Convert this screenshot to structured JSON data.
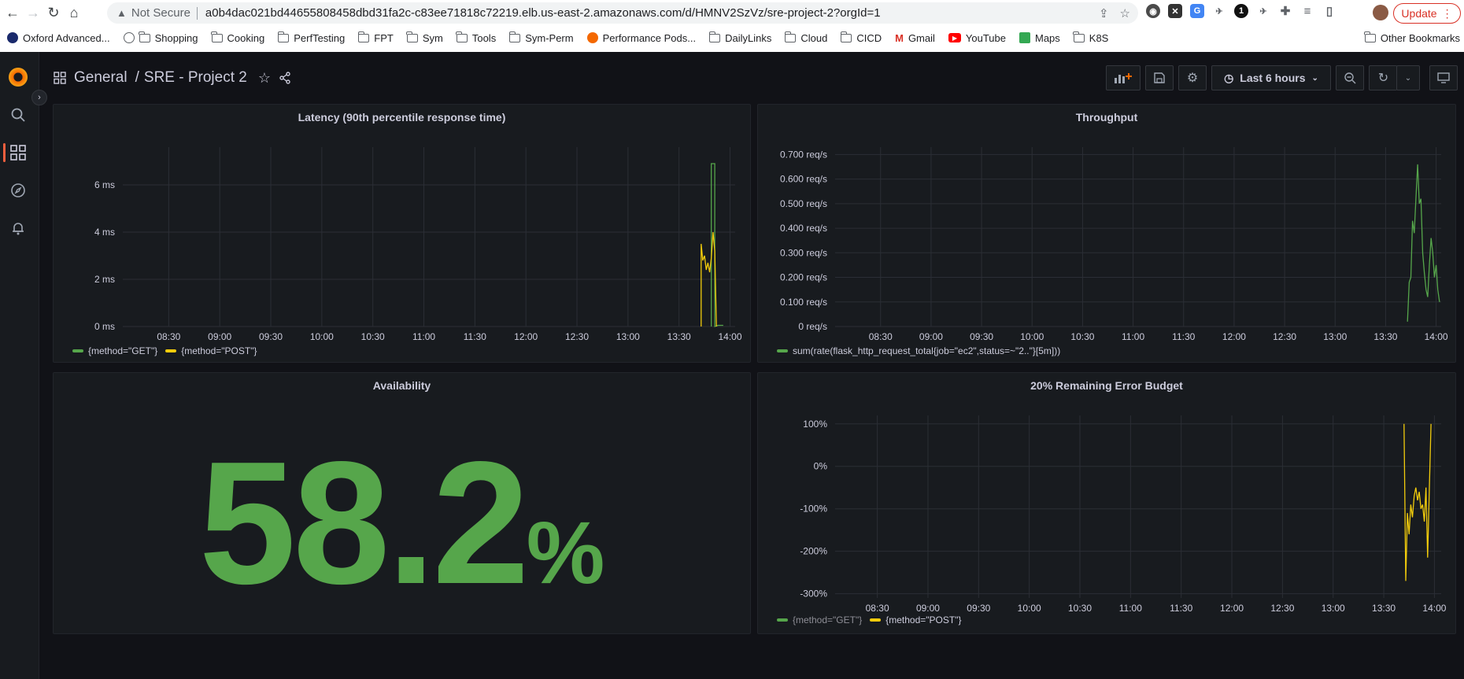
{
  "browser": {
    "security_label": "Not Secure",
    "url": "a0b4dac021bd44655808458dbd31fa2c-c83ee71818c72219.elb.us-east-2.amazonaws.com/d/HMNV2SzVz/sre-project-2?orgId=1",
    "update_label": "Update",
    "bookmarks": [
      "Oxford Advanced...",
      "Shopping",
      "Cooking",
      "PerfTesting",
      "FPT",
      "Sym",
      "Tools",
      "Sym-Perm",
      "Performance Pods...",
      "DailyLinks",
      "Cloud",
      "CICD",
      "Gmail",
      "YouTube",
      "Maps",
      "K8S"
    ],
    "other_bookmarks": "Other Bookmarks"
  },
  "dashboard": {
    "folder": "General",
    "separator": "/",
    "title": "SRE - Project 2",
    "time_range": "Last 6 hours"
  },
  "colors": {
    "green": "#56a64b",
    "yellow": "#f2cc0c",
    "grid": "#2b2e35"
  },
  "panels": {
    "latency": {
      "title": "Latency (90th percentile response time)",
      "legend": [
        "{method=\"GET\"}",
        "{method=\"POST\"}"
      ]
    },
    "throughput": {
      "title": "Throughput",
      "legend": [
        "sum(rate(flask_http_request_total{job=\"ec2\",status=~\"2..\"}[5m]))"
      ]
    },
    "availability": {
      "title": "Availability",
      "value": "58.2",
      "unit": "%"
    },
    "error_budget": {
      "title": "20% Remaining Error Budget",
      "legend": [
        "{method=\"GET\"}",
        "{method=\"POST\"}"
      ]
    }
  },
  "chart_data": [
    {
      "type": "line",
      "title": "Latency (90th percentile response time)",
      "x_ticks": [
        "08:30",
        "09:00",
        "09:30",
        "10:00",
        "10:30",
        "11:00",
        "11:30",
        "12:00",
        "12:30",
        "13:00",
        "13:30",
        "14:00"
      ],
      "y_ticks": [
        "0 ms",
        "2 ms",
        "4 ms",
        "6 ms"
      ],
      "ylim": [
        0,
        7.6
      ],
      "xlim": [
        "08:03",
        "14:03"
      ],
      "series": [
        {
          "name": "{method=\"GET\"}",
          "x": [
            "13:49",
            "13:49",
            "13:51",
            "13:51",
            "13:53",
            "13:56"
          ],
          "y": [
            0,
            6.9,
            6.9,
            0,
            0.05,
            0.05
          ]
        },
        {
          "name": "{method=\"POST\"}",
          "x": [
            "13:43",
            "13:43",
            "13:44",
            "13:45",
            "13:46",
            "13:47",
            "13:48",
            "13:49",
            "13:50",
            "13:51",
            "13:52"
          ],
          "y": [
            0,
            3.5,
            2.8,
            3.0,
            2.4,
            2.7,
            2.3,
            2.9,
            4.0,
            3.2,
            0
          ]
        }
      ]
    },
    {
      "type": "line",
      "title": "Throughput",
      "x_ticks": [
        "08:30",
        "09:00",
        "09:30",
        "10:00",
        "10:30",
        "11:00",
        "11:30",
        "12:00",
        "12:30",
        "13:00",
        "13:30",
        "14:00"
      ],
      "y_ticks": [
        "0 req/s",
        "0.100 req/s",
        "0.200 req/s",
        "0.300 req/s",
        "0.400 req/s",
        "0.500 req/s",
        "0.600 req/s",
        "0.700 req/s"
      ],
      "ylim": [
        0,
        0.73
      ],
      "xlim": [
        "08:03",
        "14:03"
      ],
      "series": [
        {
          "name": "sum(rate(flask_http_request_total{job=\"ec2\",status=~\"2..\"}[5m]))",
          "x": [
            "13:43",
            "13:44",
            "13:45",
            "13:46",
            "13:47",
            "13:48",
            "13:49",
            "13:50",
            "13:51",
            "13:52",
            "13:53",
            "13:54",
            "13:55",
            "13:56",
            "13:57",
            "13:58",
            "13:59",
            "14:00",
            "14:01",
            "14:02"
          ],
          "y": [
            0.02,
            0.18,
            0.2,
            0.43,
            0.38,
            0.52,
            0.66,
            0.5,
            0.52,
            0.3,
            0.22,
            0.15,
            0.12,
            0.25,
            0.36,
            0.3,
            0.2,
            0.25,
            0.15,
            0.1
          ]
        }
      ]
    },
    {
      "type": "line",
      "title": "20% Remaining Error Budget",
      "x_ticks": [
        "08:30",
        "09:00",
        "09:30",
        "10:00",
        "10:30",
        "11:00",
        "11:30",
        "12:00",
        "12:30",
        "13:00",
        "13:30",
        "14:00"
      ],
      "y_ticks": [
        "100%",
        "0%",
        "-100%",
        "-200%",
        "-300%"
      ],
      "ylim": [
        -310,
        120
      ],
      "xlim": [
        "08:05",
        "14:04"
      ],
      "series": [
        {
          "name": "{method=\"GET\"}",
          "x": [],
          "y": []
        },
        {
          "name": "{method=\"POST\"}",
          "x": [
            "13:42",
            "13:43",
            "13:44",
            "13:45",
            "13:46",
            "13:47",
            "13:48",
            "13:49",
            "13:50",
            "13:51",
            "13:52",
            "13:53",
            "13:54",
            "13:55",
            "13:56",
            "13:57",
            "13:58"
          ],
          "y": [
            100,
            -270,
            -110,
            -160,
            -90,
            -120,
            -70,
            -50,
            -80,
            -60,
            -100,
            -90,
            -130,
            -50,
            -215,
            -50,
            100
          ]
        }
      ]
    }
  ]
}
